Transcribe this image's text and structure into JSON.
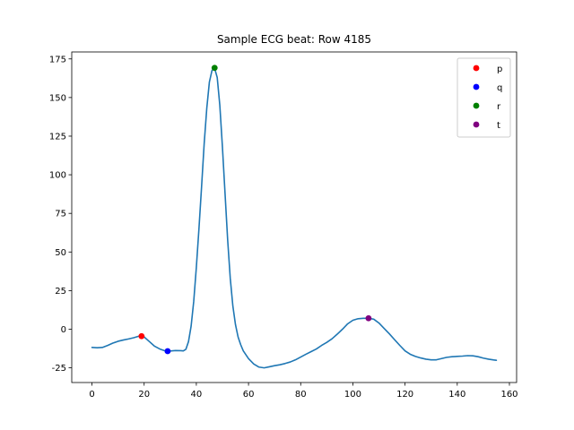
{
  "chart_data": {
    "type": "line",
    "title": "Sample ECG beat: Row 4185",
    "xlim": [
      -7.75,
      162.75
    ],
    "ylim": [
      -34.5,
      179.5
    ],
    "grid": false,
    "legend_placement": "top-right",
    "x_ticks": [
      0,
      20,
      40,
      60,
      80,
      100,
      120,
      140,
      160
    ],
    "y_ticks": [
      -25,
      0,
      25,
      50,
      75,
      100,
      125,
      150,
      175
    ],
    "series": [
      {
        "color": "#1f77b4",
        "points": [
          [
            0,
            -11.8
          ],
          [
            2,
            -12.0
          ],
          [
            4,
            -11.8
          ],
          [
            6,
            -10.5
          ],
          [
            8,
            -9.0
          ],
          [
            10,
            -7.8
          ],
          [
            12,
            -7.0
          ],
          [
            14,
            -6.3
          ],
          [
            16,
            -5.5
          ],
          [
            18,
            -4.5
          ],
          [
            19,
            -4.3
          ],
          [
            20,
            -5.0
          ],
          [
            22,
            -8.0
          ],
          [
            24,
            -11.0
          ],
          [
            26,
            -12.8
          ],
          [
            28,
            -14.0
          ],
          [
            29,
            -14.3
          ],
          [
            30,
            -14.1
          ],
          [
            32,
            -13.8
          ],
          [
            34,
            -13.9
          ],
          [
            35,
            -14.0
          ],
          [
            36,
            -13.0
          ],
          [
            37,
            -8.0
          ],
          [
            38,
            2.0
          ],
          [
            39,
            18.0
          ],
          [
            40,
            40.0
          ],
          [
            41,
            65.0
          ],
          [
            42,
            92.0
          ],
          [
            43,
            120.0
          ],
          [
            44,
            143.0
          ],
          [
            45,
            160.0
          ],
          [
            46,
            167.5
          ],
          [
            47,
            169.0
          ],
          [
            48,
            163.0
          ],
          [
            49,
            145.0
          ],
          [
            50,
            118.0
          ],
          [
            51,
            88.0
          ],
          [
            52,
            58.0
          ],
          [
            53,
            33.0
          ],
          [
            54,
            15.0
          ],
          [
            55,
            3.0
          ],
          [
            56,
            -5.0
          ],
          [
            57,
            -10.0
          ],
          [
            58,
            -14.0
          ],
          [
            60,
            -19.0
          ],
          [
            62,
            -22.5
          ],
          [
            64,
            -24.5
          ],
          [
            66,
            -25.0
          ],
          [
            68,
            -24.3
          ],
          [
            70,
            -23.6
          ],
          [
            72,
            -23.0
          ],
          [
            74,
            -22.2
          ],
          [
            76,
            -21.2
          ],
          [
            78,
            -19.8
          ],
          [
            80,
            -18.0
          ],
          [
            82,
            -16.2
          ],
          [
            84,
            -14.5
          ],
          [
            86,
            -12.8
          ],
          [
            88,
            -10.5
          ],
          [
            90,
            -8.5
          ],
          [
            92,
            -6.2
          ],
          [
            94,
            -3.2
          ],
          [
            96,
            0.0
          ],
          [
            98,
            3.5
          ],
          [
            100,
            5.8
          ],
          [
            102,
            6.8
          ],
          [
            104,
            7.1
          ],
          [
            106,
            7.1
          ],
          [
            108,
            6.5
          ],
          [
            110,
            4.0
          ],
          [
            112,
            0.5
          ],
          [
            114,
            -3.0
          ],
          [
            116,
            -6.8
          ],
          [
            118,
            -10.5
          ],
          [
            120,
            -14.0
          ],
          [
            122,
            -16.2
          ],
          [
            124,
            -17.6
          ],
          [
            126,
            -18.6
          ],
          [
            128,
            -19.4
          ],
          [
            130,
            -19.8
          ],
          [
            132,
            -19.8
          ],
          [
            134,
            -19.0
          ],
          [
            136,
            -18.2
          ],
          [
            138,
            -17.8
          ],
          [
            140,
            -17.6
          ],
          [
            142,
            -17.4
          ],
          [
            144,
            -17.1
          ],
          [
            146,
            -17.2
          ],
          [
            148,
            -17.8
          ],
          [
            150,
            -18.7
          ],
          [
            152,
            -19.4
          ],
          [
            154,
            -19.9
          ],
          [
            155,
            -20.1
          ]
        ]
      }
    ],
    "markers": [
      {
        "name": "p",
        "x": 19,
        "y": -4.5,
        "color": "#ff0000"
      },
      {
        "name": "q",
        "x": 29,
        "y": -14.2,
        "color": "#0000ff"
      },
      {
        "name": "r",
        "x": 47,
        "y": 169.2,
        "color": "#008000"
      },
      {
        "name": "t",
        "x": 106,
        "y": 7.1,
        "color": "#800080"
      }
    ]
  }
}
